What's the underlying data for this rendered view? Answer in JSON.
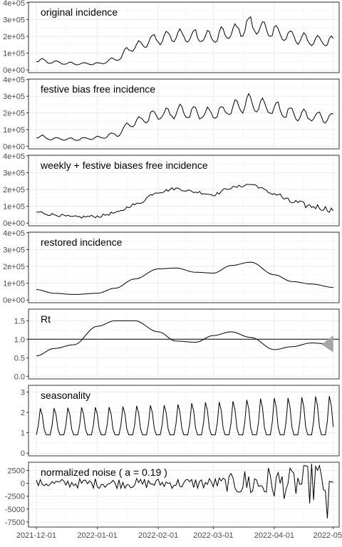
{
  "chart_data": {
    "type": "line",
    "x_axis": {
      "ticks": [
        "2021-12-01",
        "2022-01-01",
        "2022-02-01",
        "2022-03-01",
        "2022-04-01",
        "2022-05-01"
      ],
      "range": [
        "2021-11-27",
        "2022-05-04"
      ]
    },
    "grid": true,
    "panels": [
      {
        "id": "original",
        "title": "original incidence",
        "ylim": [
          0,
          400000
        ],
        "yticks": [
          "0e+00",
          "1e+05",
          "2e+05",
          "3e+05",
          "4e+05"
        ],
        "profile": {
          "dates": [
            "2021-12-01",
            "2021-12-10",
            "2021-12-20",
            "2022-01-01",
            "2022-01-10",
            "2022-01-20",
            "2022-02-01",
            "2022-02-10",
            "2022-02-20",
            "2022-03-01",
            "2022-03-10",
            "2022-03-20",
            "2022-04-01",
            "2022-04-10",
            "2022-04-20",
            "2022-05-01"
          ],
          "weekly_peak": [
            70000,
            55000,
            45000,
            45000,
            75000,
            170000,
            230000,
            245000,
            240000,
            235000,
            270000,
            320000,
            275000,
            235000,
            215000,
            200000
          ],
          "weekday_trough_fraction": 0.45
        }
      },
      {
        "id": "festive_free",
        "title": "festive bias free incidence",
        "ylim": [
          0,
          400000
        ],
        "yticks": [
          "0e+00",
          "1e+05",
          "2e+05",
          "3e+05",
          "4e+05"
        ],
        "profile": {
          "dates": [
            "2021-12-01",
            "2021-12-10",
            "2021-12-20",
            "2022-01-01",
            "2022-01-10",
            "2022-01-20",
            "2022-02-01",
            "2022-02-10",
            "2022-02-20",
            "2022-03-01",
            "2022-03-10",
            "2022-03-20",
            "2022-04-01",
            "2022-04-10",
            "2022-04-20",
            "2022-05-01"
          ],
          "weekly_peak": [
            70000,
            55000,
            50000,
            60000,
            85000,
            175000,
            230000,
            245000,
            240000,
            235000,
            270000,
            315000,
            275000,
            235000,
            215000,
            200000
          ],
          "weekday_trough_fraction": 0.45
        }
      },
      {
        "id": "weekly_festive_free",
        "title": "weekly + festive biases free incidence",
        "ylim": [
          0,
          400000
        ],
        "yticks": [
          "0e+00",
          "1e+05",
          "2e+05",
          "3e+05",
          "4e+05"
        ],
        "values": {
          "dates": [
            "2021-12-01",
            "2021-12-10",
            "2021-12-20",
            "2022-01-01",
            "2022-01-10",
            "2022-01-20",
            "2022-02-01",
            "2022-02-10",
            "2022-02-20",
            "2022-03-01",
            "2022-03-10",
            "2022-03-20",
            "2022-04-01",
            "2022-04-10",
            "2022-04-20",
            "2022-05-01"
          ],
          "y": [
            65000,
            50000,
            35000,
            40000,
            60000,
            110000,
            185000,
            205000,
            185000,
            170000,
            210000,
            230000,
            175000,
            125000,
            100000,
            80000
          ],
          "noise_amplitude": 9000
        }
      },
      {
        "id": "restored",
        "title": "restored incidence",
        "ylim": [
          0,
          400000
        ],
        "yticks": [
          "0e+00",
          "1e+05",
          "2e+05",
          "3e+05",
          "4e+05"
        ],
        "values": {
          "dates": [
            "2021-12-01",
            "2021-12-10",
            "2021-12-20",
            "2022-01-01",
            "2022-01-10",
            "2022-01-20",
            "2022-02-01",
            "2022-02-10",
            "2022-02-20",
            "2022-03-01",
            "2022-03-10",
            "2022-03-20",
            "2022-04-01",
            "2022-04-10",
            "2022-04-20",
            "2022-05-01"
          ],
          "y": [
            62000,
            40000,
            33000,
            40000,
            70000,
            125000,
            185000,
            190000,
            165000,
            160000,
            205000,
            225000,
            150000,
            110000,
            95000,
            75000
          ]
        }
      },
      {
        "id": "rt",
        "title": "Rt",
        "ylim": [
          0,
          1.8
        ],
        "yticks": [
          "0.0",
          "0.5",
          "1.0",
          "1.5"
        ],
        "reference_line": 1.0,
        "values": {
          "dates": [
            "2021-12-01",
            "2021-12-10",
            "2021-12-20",
            "2022-01-01",
            "2022-01-10",
            "2022-01-20",
            "2022-02-01",
            "2022-02-10",
            "2022-02-20",
            "2022-03-01",
            "2022-03-10",
            "2022-03-20",
            "2022-04-01",
            "2022-04-10",
            "2022-04-20",
            "2022-05-01"
          ],
          "y": [
            0.55,
            0.75,
            0.85,
            1.35,
            1.5,
            1.5,
            1.2,
            0.95,
            0.92,
            1.1,
            1.2,
            1.05,
            0.72,
            0.8,
            0.9,
            0.86
          ]
        },
        "uncertainty_band": {
          "dates": [
            "2022-04-25",
            "2022-05-01"
          ],
          "low": [
            0.86,
            0.65
          ],
          "high": [
            0.86,
            1.1
          ],
          "color": "#a6a6a6"
        }
      },
      {
        "id": "seasonality",
        "title": "seasonality",
        "ylim": [
          0,
          3.3
        ],
        "yticks": [
          "0",
          "1",
          "2",
          "3"
        ],
        "profile": {
          "dates": [
            "2021-12-01",
            "2022-01-01",
            "2022-02-01",
            "2022-03-01",
            "2022-04-01",
            "2022-05-01"
          ],
          "weekly_peak": [
            2.2,
            2.25,
            2.35,
            2.5,
            2.7,
            2.8
          ],
          "baseline": 0.9
        }
      },
      {
        "id": "noise",
        "title": "normalized noise ( a =  0.19 )",
        "ylim": [
          -8000,
          4000
        ],
        "yticks": [
          "-7500",
          "-5000",
          "-2500",
          "0",
          "2500"
        ],
        "values": {
          "dates": [
            "2021-12-01",
            "2022-01-01",
            "2022-02-01",
            "2022-03-01",
            "2022-03-25",
            "2022-04-10",
            "2022-04-25",
            "2022-05-01"
          ],
          "amplitude": [
            800,
            1000,
            1000,
            1200,
            3500,
            3000,
            4500,
            500
          ]
        }
      }
    ]
  }
}
